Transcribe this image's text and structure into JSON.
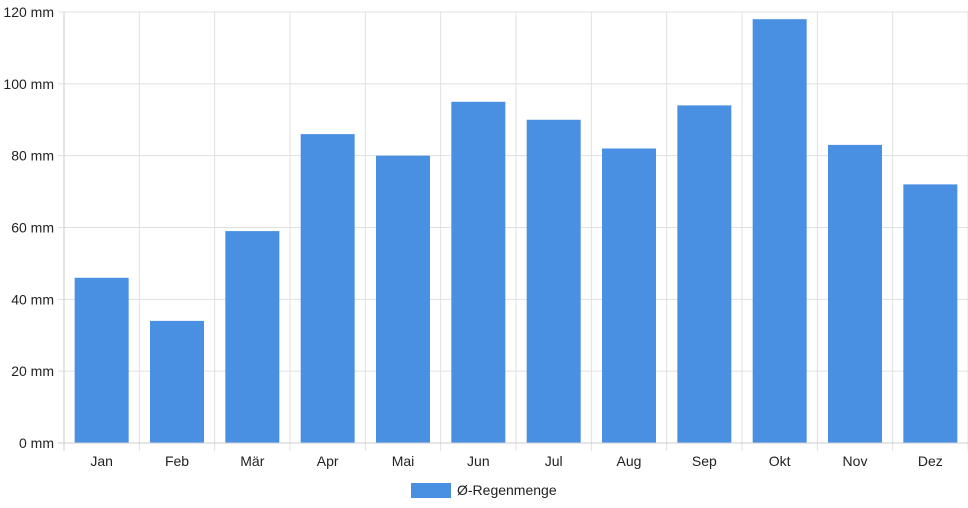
{
  "colors": {
    "bar": "#4a90e2",
    "grid": "#e0e0e0",
    "axis": "#cccccc",
    "text": "#222222"
  },
  "legend": {
    "label": "Ø-Regenmenge",
    "swatch_color": "#4a90e2"
  },
  "chart_data": {
    "type": "bar",
    "categories": [
      "Jan",
      "Feb",
      "Mär",
      "Apr",
      "Mai",
      "Jun",
      "Jul",
      "Aug",
      "Sep",
      "Okt",
      "Nov",
      "Dez"
    ],
    "series": [
      {
        "name": "Ø-Regenmenge",
        "values": [
          46,
          34,
          59,
          86,
          80,
          95,
          90,
          82,
          94,
          118,
          83,
          72
        ]
      }
    ],
    "ylim": [
      0,
      120
    ],
    "y_ticks": [
      0,
      20,
      40,
      60,
      80,
      100,
      120
    ],
    "y_tick_labels": [
      "0 mm",
      "20 mm",
      "40 mm",
      "60 mm",
      "80 mm",
      "100 mm",
      "120 mm"
    ],
    "grid": true,
    "legend_position": "bottom-center"
  }
}
